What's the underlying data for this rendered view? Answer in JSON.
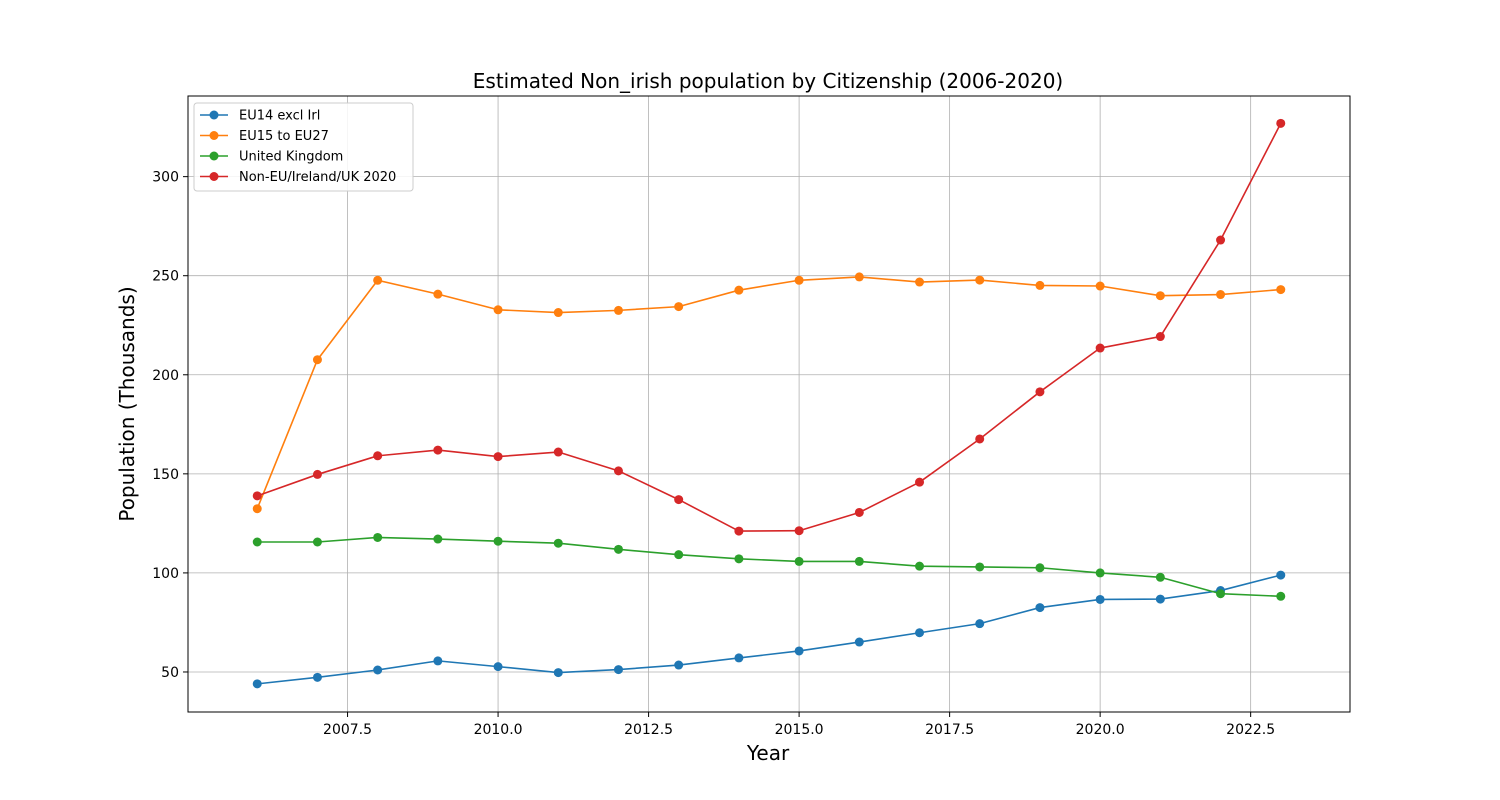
{
  "chart_data": {
    "type": "line",
    "title": "Estimated Non_irish population by Citizenship (2006-2020)",
    "xlabel": "Year",
    "ylabel": "Population (Thousands)",
    "x": [
      2006,
      2007,
      2008,
      2009,
      2010,
      2011,
      2012,
      2013,
      2014,
      2015,
      2016,
      2017,
      2018,
      2019,
      2020,
      2021,
      2022,
      2023
    ],
    "xlim": [
      2004.85,
      2024.15
    ],
    "ylim": [
      29.8,
      340.7
    ],
    "xticks": [
      2007.5,
      2010.0,
      2012.5,
      2015.0,
      2017.5,
      2020.0,
      2022.5
    ],
    "xtick_labels": [
      "2007.5",
      "2010.0",
      "2012.5",
      "2015.0",
      "2017.5",
      "2020.0",
      "2022.5"
    ],
    "yticks": [
      50,
      100,
      150,
      200,
      250,
      300
    ],
    "ytick_labels": [
      "50",
      "100",
      "150",
      "200",
      "250",
      "300"
    ],
    "grid": true,
    "legend_position": "top-left",
    "series": [
      {
        "name": "EU14 excl Irl",
        "color": "#1f77b4",
        "values": [
          44.0,
          47.3,
          51.0,
          55.6,
          52.7,
          49.7,
          51.2,
          53.5,
          57.1,
          60.6,
          65.1,
          69.8,
          74.4,
          82.5,
          86.6,
          86.8,
          91.1,
          98.9
        ]
      },
      {
        "name": "EU15 to EU27",
        "color": "#ff7f0e",
        "values": [
          132.4,
          207.6,
          247.7,
          240.7,
          232.8,
          231.4,
          232.5,
          234.4,
          242.7,
          247.7,
          249.4,
          246.8,
          247.8,
          245.1,
          244.8,
          239.9,
          240.5,
          243.0
        ]
      },
      {
        "name": "United Kingdom",
        "color": "#2ca02c",
        "values": [
          115.6,
          115.6,
          117.9,
          117.1,
          116.0,
          115.0,
          111.9,
          109.2,
          107.1,
          105.8,
          105.8,
          103.4,
          103.0,
          102.6,
          100.0,
          97.8,
          89.5,
          88.2
        ]
      },
      {
        "name": "Non-EU/Ireland/UK 2020",
        "color": "#d62728",
        "values": [
          138.9,
          149.7,
          159.1,
          162.0,
          158.7,
          161.0,
          151.5,
          137.0,
          121.1,
          121.3,
          130.5,
          145.8,
          167.6,
          191.4,
          213.5,
          219.3,
          268.0,
          326.9
        ]
      }
    ]
  }
}
